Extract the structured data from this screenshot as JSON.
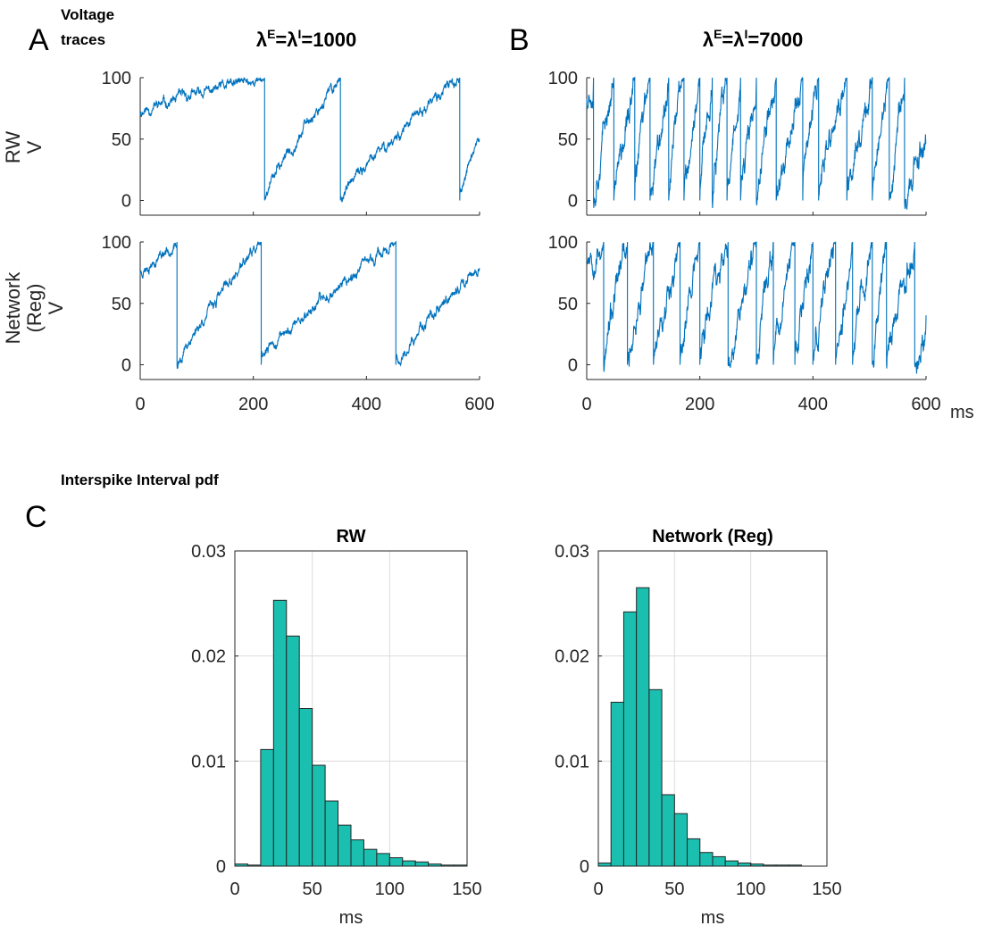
{
  "figure": {
    "panels": {
      "A": "A",
      "B": "B",
      "C": "C"
    },
    "section_top": {
      "line1": "Voltage",
      "line2": "traces"
    },
    "section_bottom": "Interspike Interval pdf",
    "x_unit_label": "ms",
    "rows": [
      {
        "label_lines": [
          "RW",
          "V"
        ]
      },
      {
        "label_lines": [
          "Network",
          "(Reg)",
          "V"
        ]
      }
    ],
    "conditions": [
      {
        "lambda": "λ",
        "sup_e": "E",
        "mid": "=λ",
        "sup_i": "I",
        "value": "=1000"
      },
      {
        "lambda": "λ",
        "sup_e": "E",
        "mid": "=λ",
        "sup_i": "I",
        "value": "=7000"
      }
    ]
  },
  "chart_data": [
    {
      "type": "line",
      "id": "A-RW",
      "xlim": [
        0,
        600
      ],
      "ylim": [
        -12,
        100
      ],
      "xticks": [
        0,
        200,
        400,
        600
      ],
      "yticks": [
        0,
        50,
        100
      ],
      "xlabel": "",
      "ylabel": "V",
      "rate": 1000,
      "threshold": 100,
      "reset": 0,
      "spike_times": [
        220,
        354,
        565
      ],
      "start_v": 72
    },
    {
      "type": "line",
      "id": "A-Network",
      "xlim": [
        0,
        600
      ],
      "ylim": [
        -12,
        100
      ],
      "xticks": [
        0,
        200,
        400,
        600
      ],
      "yticks": [
        0,
        50,
        100
      ],
      "xlabel": "",
      "ylabel": "V",
      "rate": 1000,
      "threshold": 100,
      "reset": 0,
      "spike_times": [
        65,
        214,
        452
      ],
      "start_v": 75
    },
    {
      "type": "line",
      "id": "B-RW",
      "xlim": [
        0,
        600
      ],
      "ylim": [
        -12,
        100
      ],
      "xticks": [
        0,
        200,
        400,
        600
      ],
      "yticks": [
        0,
        50,
        100
      ],
      "xlabel": "",
      "ylabel": "V",
      "rate": 7000,
      "threshold": 100,
      "reset": 0,
      "spike_times": [
        12,
        48,
        85,
        112,
        145,
        172,
        200,
        222,
        248,
        272,
        300,
        335,
        382,
        410,
        460,
        505,
        535,
        562
      ],
      "start_v": 85
    },
    {
      "type": "line",
      "id": "B-Network",
      "xlim": [
        0,
        600
      ],
      "ylim": [
        -12,
        100
      ],
      "xticks": [
        0,
        200,
        400,
        600
      ],
      "yticks": [
        0,
        50,
        100
      ],
      "xlabel": "",
      "ylabel": "V",
      "rate": 7000,
      "threshold": 100,
      "reset": 0,
      "spike_times": [
        30,
        72,
        118,
        165,
        200,
        250,
        300,
        330,
        368,
        400,
        440,
        470,
        505,
        530,
        580
      ],
      "start_v": 90
    },
    {
      "type": "bar",
      "id": "C-RW",
      "title": "RW",
      "xlabel": "ms",
      "ylabel": "",
      "xlim": [
        0,
        150
      ],
      "ylim": [
        0,
        0.03
      ],
      "xticks": [
        0,
        50,
        100,
        150
      ],
      "yticks": [
        0,
        0.01,
        0.02,
        0.03
      ],
      "ytick_labels": [
        "0",
        "0.01",
        "0.02",
        "0.03"
      ],
      "grid": true,
      "bin_width": 8.33,
      "bin_starts": [
        0,
        8.33,
        16.67,
        25,
        33.33,
        41.67,
        50,
        58.33,
        66.67,
        75,
        83.33,
        91.67,
        100,
        108.33,
        116.67,
        125,
        133.33,
        141.67
      ],
      "values": [
        0.0002,
        0.0001,
        0.0111,
        0.0253,
        0.0219,
        0.015,
        0.0096,
        0.0062,
        0.0039,
        0.0025,
        0.0016,
        0.0012,
        0.0008,
        0.0005,
        0.0004,
        0.0002,
        0.0001,
        0.0001
      ]
    },
    {
      "type": "bar",
      "id": "C-Network",
      "title": "Network (Reg)",
      "xlabel": "ms",
      "ylabel": "",
      "xlim": [
        0,
        150
      ],
      "ylim": [
        0,
        0.03
      ],
      "xticks": [
        0,
        50,
        100,
        150
      ],
      "yticks": [
        0,
        0.01,
        0.02,
        0.03
      ],
      "ytick_labels": [
        "0",
        "0.01",
        "0.02",
        "0.03"
      ],
      "grid": true,
      "bin_width": 8.33,
      "bin_starts": [
        0,
        8.33,
        16.67,
        25,
        33.33,
        41.67,
        50,
        58.33,
        66.67,
        75,
        83.33,
        91.67,
        100,
        108.33,
        116.67,
        125,
        133.33,
        141.67
      ],
      "values": [
        0.0003,
        0.0156,
        0.0242,
        0.0265,
        0.0168,
        0.0068,
        0.005,
        0.0026,
        0.0013,
        0.0009,
        0.0005,
        0.0003,
        0.0002,
        0.0001,
        0.0001,
        0.0001,
        0.0,
        0.0
      ]
    }
  ]
}
